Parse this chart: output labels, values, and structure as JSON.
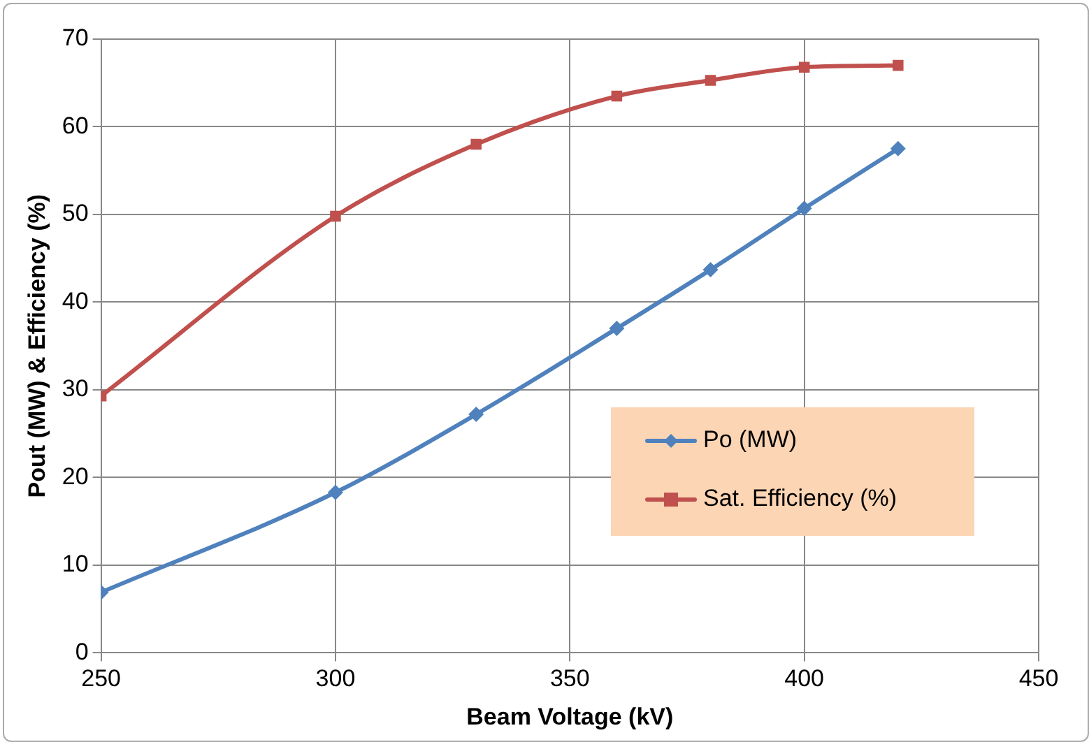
{
  "chart_data": {
    "type": "line",
    "xlabel": "Beam Voltage (kV)",
    "ylabel": "Pout (MW) & Efficiency (%)",
    "x": [
      250,
      300,
      330,
      360,
      380,
      400,
      420
    ],
    "series": [
      {
        "name": "Po (MW)",
        "color": "#4f81bd",
        "marker": "diamond",
        "values": [
          6.9,
          18.3,
          27.2,
          37.0,
          43.7,
          50.7,
          57.5
        ]
      },
      {
        "name": "Sat. Efficiency (%)",
        "color": "#c0504d",
        "marker": "square",
        "values": [
          29.3,
          49.8,
          58.0,
          63.5,
          65.3,
          66.8,
          67.0
        ]
      }
    ],
    "xlim": [
      250,
      450
    ],
    "xticks": [
      250,
      300,
      350,
      400,
      450
    ],
    "ylim": [
      0,
      70
    ],
    "yticks": [
      0,
      10,
      20,
      30,
      40,
      50,
      60,
      70
    ],
    "grid": true,
    "legend": "right",
    "line_style": "solid"
  }
}
